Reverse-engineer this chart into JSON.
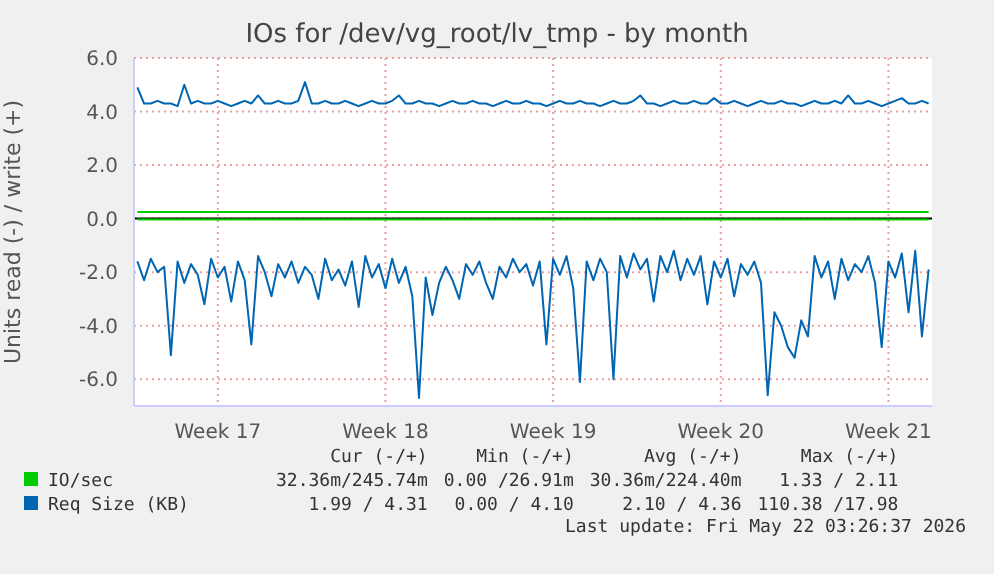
{
  "chart_data": {
    "type": "line",
    "title": "IOs for /dev/vg_root/lv_tmp - by month",
    "ylabel": "Units read (-) / write (+)",
    "categories": [
      null,
      null,
      null,
      null,
      null,
      null,
      null,
      null,
      null,
      null,
      null,
      null,
      "Week 17",
      null,
      null,
      null,
      null,
      null,
      null,
      null,
      null,
      null,
      null,
      null,
      null,
      null,
      null,
      null,
      null,
      null,
      null,
      null,
      null,
      null,
      null,
      null,
      null,
      "Week 18",
      null,
      null,
      null,
      null,
      null,
      null,
      null,
      null,
      null,
      null,
      null,
      null,
      null,
      null,
      null,
      null,
      null,
      null,
      null,
      null,
      null,
      null,
      null,
      null,
      "Week 19",
      null,
      null,
      null,
      null,
      null,
      null,
      null,
      null,
      null,
      null,
      null,
      null,
      null,
      null,
      null,
      null,
      null,
      null,
      null,
      null,
      null,
      null,
      null,
      null,
      "Week 20",
      null,
      null,
      null,
      null,
      null,
      null,
      null,
      null,
      null,
      null,
      null,
      null,
      null,
      null,
      null,
      null,
      null,
      null,
      null,
      null,
      null,
      null,
      null,
      null,
      "Week 21",
      null,
      null,
      null,
      null,
      null,
      null
    ],
    "series": [
      {
        "name": "IO/sec",
        "color": "#00cc00",
        "values": [
          0.25,
          0.25,
          0.25,
          0.25,
          0.25,
          0.25,
          0.25,
          0.25,
          0.25,
          0.25,
          0.25,
          0.25,
          0.25,
          0.25,
          0.25,
          0.25,
          0.25,
          0.25,
          0.25,
          0.25,
          0.25,
          0.25,
          0.25,
          0.25,
          0.25,
          0.25,
          0.25,
          0.25,
          0.25,
          0.25,
          0.25,
          0.25,
          0.25,
          0.25,
          0.25,
          0.25,
          0.25,
          0.25,
          0.25,
          0.25,
          0.25,
          0.25,
          0.25,
          0.25,
          0.25,
          0.25,
          0.25,
          0.25,
          0.25,
          0.25,
          0.25,
          0.25,
          0.25,
          0.25,
          0.25,
          0.25,
          0.25,
          0.25,
          0.25,
          0.25,
          0.25,
          0.25,
          0.25,
          0.25,
          0.25,
          0.25,
          0.25,
          0.25,
          0.25,
          0.25,
          0.25,
          0.25,
          0.25,
          0.25,
          0.25,
          0.25,
          0.25,
          0.25,
          0.25,
          0.25,
          0.25,
          0.25,
          0.25,
          0.25,
          0.25,
          0.25,
          0.25,
          0.25,
          0.25,
          0.25,
          0.25,
          0.25,
          0.25,
          0.25,
          0.25,
          0.25,
          0.25,
          0.25,
          0.25,
          0.25,
          0.25,
          0.25,
          0.25,
          0.25,
          0.25,
          0.25,
          0.25,
          0.25,
          0.25,
          0.25,
          0.25,
          0.25,
          0.25,
          0.25,
          0.25,
          0.25,
          0.25,
          0.25,
          0.25
        ]
      },
      {
        "color": "#00cc00",
        "values": [
          -0.03,
          -0.03,
          -0.03,
          -0.03,
          -0.03,
          -0.03,
          -0.03,
          -0.03,
          -0.03,
          -0.03,
          -0.03,
          -0.03,
          -0.03,
          -0.03,
          -0.03,
          -0.03,
          -0.03,
          -0.03,
          -0.03,
          -0.03,
          -0.03,
          -0.03,
          -0.03,
          -0.03,
          -0.03,
          -0.03,
          -0.03,
          -0.03,
          -0.03,
          -0.03,
          -0.03,
          -0.03,
          -0.03,
          -0.03,
          -0.03,
          -0.03,
          -0.03,
          -0.03,
          -0.03,
          -0.03,
          -0.03,
          -0.03,
          -0.03,
          -0.03,
          -0.03,
          -0.03,
          -0.03,
          -0.03,
          -0.03,
          -0.03,
          -0.03,
          -0.03,
          -0.03,
          -0.03,
          -0.03,
          -0.03,
          -0.03,
          -0.03,
          -0.03,
          -0.03,
          -0.03,
          -0.03,
          -0.03,
          -0.03,
          -0.03,
          -0.03,
          -0.03,
          -0.03,
          -0.03,
          -0.03,
          -0.03,
          -0.03,
          -0.03,
          -0.03,
          -0.03,
          -0.03,
          -0.03,
          -0.03,
          -0.03,
          -0.03,
          -0.03,
          -0.03,
          -0.03,
          -0.03,
          -0.03,
          -0.03,
          -0.03,
          -0.03,
          -0.03,
          -0.03,
          -0.03,
          -0.03,
          -0.03,
          -0.03,
          -0.03,
          -0.03,
          -0.03,
          -0.03,
          -0.03,
          -0.03,
          -0.03,
          -0.03,
          -0.03,
          -0.03,
          -0.03,
          -0.03,
          -0.03,
          -0.03,
          -0.03,
          -0.03,
          -0.03,
          -0.03,
          -0.03,
          -0.03,
          -0.03,
          -0.03,
          -0.03,
          -0.03,
          -0.03
        ]
      },
      {
        "name": "Req Size (KB)",
        "color": "#0066b3",
        "values": [
          4.9,
          4.3,
          4.3,
          4.4,
          4.3,
          4.3,
          4.2,
          5.0,
          4.3,
          4.4,
          4.3,
          4.3,
          4.4,
          4.3,
          4.2,
          4.3,
          4.4,
          4.3,
          4.6,
          4.3,
          4.3,
          4.4,
          4.3,
          4.3,
          4.4,
          5.1,
          4.3,
          4.3,
          4.4,
          4.3,
          4.3,
          4.4,
          4.3,
          4.2,
          4.3,
          4.4,
          4.3,
          4.3,
          4.4,
          4.6,
          4.3,
          4.3,
          4.4,
          4.3,
          4.3,
          4.2,
          4.3,
          4.4,
          4.3,
          4.3,
          4.4,
          4.3,
          4.3,
          4.2,
          4.3,
          4.4,
          4.3,
          4.3,
          4.4,
          4.3,
          4.3,
          4.2,
          4.3,
          4.4,
          4.3,
          4.3,
          4.4,
          4.3,
          4.3,
          4.2,
          4.3,
          4.4,
          4.3,
          4.3,
          4.4,
          4.6,
          4.3,
          4.3,
          4.2,
          4.3,
          4.4,
          4.3,
          4.3,
          4.4,
          4.3,
          4.3,
          4.5,
          4.3,
          4.3,
          4.4,
          4.3,
          4.2,
          4.3,
          4.4,
          4.3,
          4.3,
          4.4,
          4.3,
          4.3,
          4.2,
          4.3,
          4.4,
          4.3,
          4.3,
          4.4,
          4.3,
          4.6,
          4.3,
          4.3,
          4.4,
          4.3,
          4.2,
          4.3,
          4.4,
          4.5,
          4.3,
          4.3,
          4.4,
          4.3
        ]
      },
      {
        "color": "#0066b3",
        "values": [
          -1.6,
          -2.3,
          -1.5,
          -2.0,
          -1.8,
          -5.1,
          -1.6,
          -2.4,
          -1.7,
          -2.1,
          -3.2,
          -1.5,
          -2.2,
          -1.8,
          -3.1,
          -1.6,
          -2.3,
          -4.7,
          -1.4,
          -2.0,
          -2.9,
          -1.7,
          -2.2,
          -1.6,
          -2.4,
          -1.8,
          -2.1,
          -3.0,
          -1.5,
          -2.3,
          -1.9,
          -2.5,
          -1.6,
          -3.3,
          -1.4,
          -2.2,
          -1.7,
          -2.6,
          -1.5,
          -2.4,
          -1.8,
          -2.9,
          -6.7,
          -2.2,
          -3.6,
          -2.4,
          -1.8,
          -2.3,
          -3.0,
          -1.7,
          -2.1,
          -1.6,
          -2.4,
          -3.0,
          -1.8,
          -2.2,
          -1.5,
          -2.0,
          -1.7,
          -2.5,
          -1.6,
          -4.7,
          -1.5,
          -2.1,
          -1.4,
          -2.6,
          -6.1,
          -1.6,
          -2.3,
          -1.5,
          -2.0,
          -6.0,
          -1.4,
          -2.2,
          -1.3,
          -1.9,
          -1.5,
          -3.1,
          -1.4,
          -2.0,
          -1.2,
          -2.3,
          -1.5,
          -2.1,
          -1.4,
          -3.2,
          -1.6,
          -2.2,
          -1.5,
          -2.9,
          -1.7,
          -2.1,
          -1.6,
          -2.4,
          -6.6,
          -3.5,
          -4.0,
          -4.8,
          -5.2,
          -3.8,
          -4.4,
          -1.4,
          -2.2,
          -1.6,
          -3.0,
          -1.5,
          -2.3,
          -1.7,
          -2.0,
          -1.4,
          -2.4,
          -4.8,
          -1.6,
          -2.2,
          -1.3,
          -3.5,
          -1.2,
          -4.4,
          -1.9
        ]
      }
    ],
    "ylim": [
      -7,
      6
    ],
    "yticks": [
      {
        "value": -6,
        "label": "-6.0"
      },
      {
        "value": -4,
        "label": "-4.0"
      },
      {
        "value": -2,
        "label": "-2.0"
      },
      {
        "value": 0,
        "label": "0.0"
      },
      {
        "value": 2,
        "label": "2.0"
      },
      {
        "value": 4,
        "label": "4.0"
      },
      {
        "value": 6,
        "label": "6.0"
      }
    ],
    "ref_lines": [
      {
        "axis": "y",
        "value": 0,
        "color": "#000000"
      }
    ],
    "grid": true,
    "legend": "bottom",
    "marker": "none",
    "line_style": "solid",
    "annotations": [
      "Cur (-/+)",
      "Min (-/+)",
      "Avg (-/+)",
      "Max (-/+)",
      "32.36m/245.74m",
      "0.00 /26.91m",
      "30.36m/224.40m",
      "1.33 / 2.11",
      "1.99 / 4.31",
      "0.00 / 4.10",
      "2.10 / 4.36",
      "110.38 /17.98",
      "Last update: Fri May 22 03:26:37 2026"
    ]
  }
}
